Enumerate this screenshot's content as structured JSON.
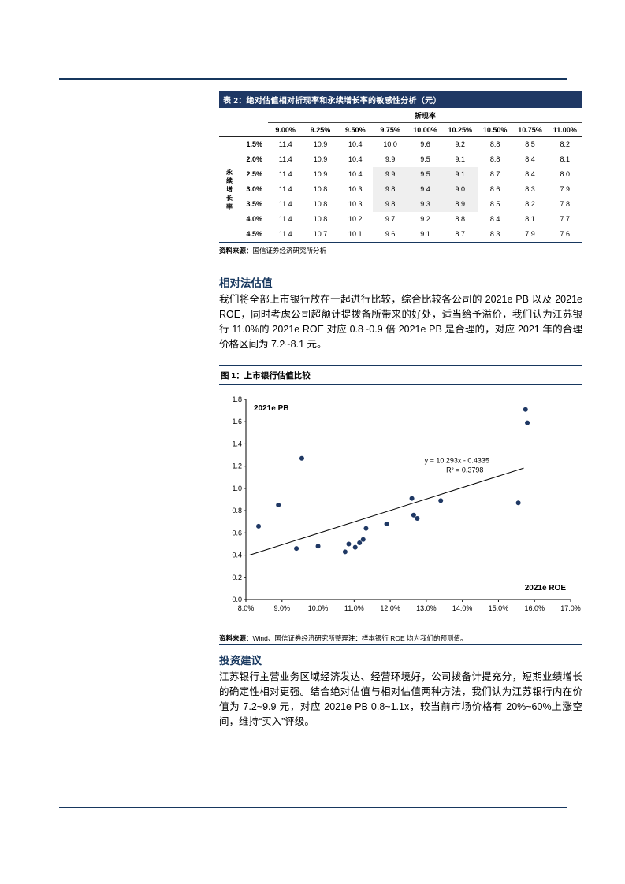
{
  "page": {
    "accent_color": "#17375E"
  },
  "table": {
    "title": "表 2：绝对估值相对折现率和永续增长率的敏感性分析（元）",
    "group_header": "折现率",
    "row_axis_label": "永续增长率",
    "col_headers": [
      "9.00%",
      "9.25%",
      "9.50%",
      "9.75%",
      "10.00%",
      "10.25%",
      "10.50%",
      "10.75%",
      "11.00%"
    ],
    "rows": [
      {
        "label": "1.5%",
        "values": [
          "11.4",
          "10.9",
          "10.4",
          "10.0",
          "9.6",
          "9.2",
          "8.8",
          "8.5",
          "8.2"
        ]
      },
      {
        "label": "2.0%",
        "values": [
          "11.4",
          "10.9",
          "10.4",
          "9.9",
          "9.5",
          "9.1",
          "8.8",
          "8.4",
          "8.1"
        ]
      },
      {
        "label": "2.5%",
        "values": [
          "11.4",
          "10.9",
          "10.4",
          "9.9",
          "9.5",
          "9.1",
          "8.7",
          "8.4",
          "8.0"
        ]
      },
      {
        "label": "3.0%",
        "values": [
          "11.4",
          "10.8",
          "10.3",
          "9.8",
          "9.4",
          "9.0",
          "8.6",
          "8.3",
          "7.9"
        ]
      },
      {
        "label": "3.5%",
        "values": [
          "11.4",
          "10.8",
          "10.3",
          "9.8",
          "9.3",
          "8.9",
          "8.5",
          "8.2",
          "7.8"
        ]
      },
      {
        "label": "4.0%",
        "values": [
          "11.4",
          "10.8",
          "10.2",
          "9.7",
          "9.2",
          "8.8",
          "8.4",
          "8.1",
          "7.7"
        ]
      },
      {
        "label": "4.5%",
        "values": [
          "11.4",
          "10.7",
          "10.1",
          "9.6",
          "9.1",
          "8.7",
          "8.3",
          "7.9",
          "7.6"
        ]
      }
    ],
    "highlight": {
      "row_start": 2,
      "row_end": 4,
      "col_start": 3,
      "col_end": 5
    },
    "source_label": "资料来源：",
    "source_text": "国信证券经济研究所分析"
  },
  "sections": [
    {
      "heading": "相对法估值",
      "body": "我们将全部上市银行放在一起进行比较，综合比较各公司的 2021e PB 以及 2021e ROE，同时考虑公司超额计提拨备所带来的好处，适当给予溢价，我们认为江苏银行 11.0%的 2021e ROE 对应 0.8~0.9 倍 2021e PB 是合理的，对应 2021 年的合理价格区间为 7.2~8.1 元。"
    },
    {
      "heading": "投资建议",
      "body": "江苏银行主营业务区域经济发达、经营环境好，公司拨备计提充分，短期业绩增长的确定性相对更强。结合绝对估值与相对估值两种方法，我们认为江苏银行内在价值为 7.2~9.9 元，对应 2021e PB 0.8~1.1x，较当前市场价格有 20%~60%上涨空间，维持“买入”评级。"
    }
  ],
  "figure": {
    "title": "图 1：上市银行估值比较",
    "source_label": "资料来源：",
    "source_text": "Wind、国信证券经济研究所整理",
    "note_label": "注：",
    "note_text": "样本银行 ROE 均为我们的预测值。"
  },
  "chart_data": {
    "type": "scatter",
    "title": "上市银行估值比较",
    "xlabel": "2021e ROE",
    "ylabel": "2021e PB",
    "x_range": [
      0.08,
      0.17
    ],
    "y_range": [
      0,
      1.8
    ],
    "x_ticks": [
      "8.0%",
      "9.0%",
      "10.0%",
      "11.0%",
      "12.0%",
      "13.0%",
      "14.0%",
      "15.0%",
      "16.0%",
      "17.0%"
    ],
    "y_ticks": [
      "0.0",
      "0.2",
      "0.4",
      "0.6",
      "0.8",
      "1.0",
      "1.2",
      "1.4",
      "1.6",
      "1.8"
    ],
    "points": [
      [
        0.0835,
        0.66
      ],
      [
        0.089,
        0.85
      ],
      [
        0.0955,
        1.27
      ],
      [
        0.094,
        0.46
      ],
      [
        0.1,
        0.48
      ],
      [
        0.1075,
        0.43
      ],
      [
        0.1085,
        0.5
      ],
      [
        0.1103,
        0.47
      ],
      [
        0.1115,
        0.51
      ],
      [
        0.1125,
        0.54
      ],
      [
        0.1133,
        0.64
      ],
      [
        0.119,
        0.68
      ],
      [
        0.126,
        0.91
      ],
      [
        0.1265,
        0.76
      ],
      [
        0.1275,
        0.73
      ],
      [
        0.134,
        0.89
      ],
      [
        0.1555,
        0.87
      ],
      [
        0.1575,
        1.71
      ],
      [
        0.158,
        1.59
      ]
    ],
    "point_color": "#1F3864",
    "trendline": {
      "equation": "y = 10.293x - 0.4335",
      "r2": "R² = 0.3798",
      "slope": 10.293,
      "intercept": -0.4335,
      "x_start": 0.081,
      "x_end": 0.157,
      "label_pos": [
        0.1385,
        1.23
      ]
    },
    "grid": false,
    "legend": "none"
  }
}
